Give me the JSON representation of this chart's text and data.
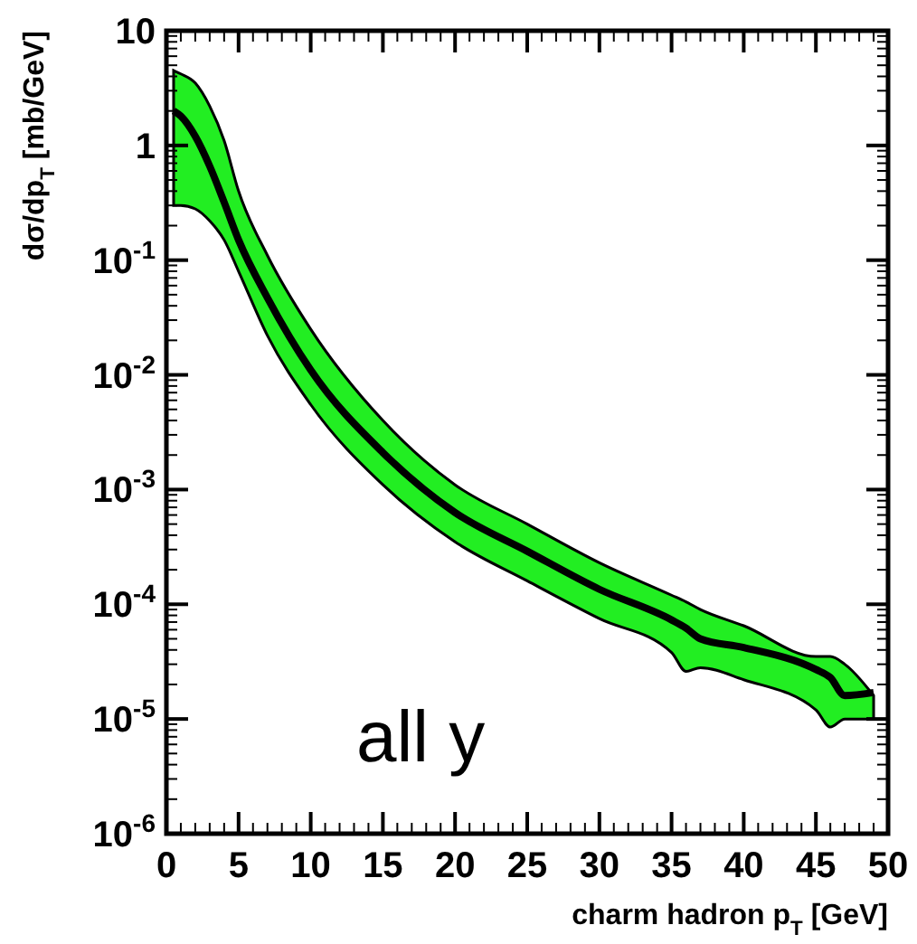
{
  "chart_data": {
    "type": "line",
    "xlabel": "charm hadron p$_{T}$ [GeV]",
    "ylabel": "dσ/dp$_{T}$ [mb/GeV]",
    "annotations": [
      "all y"
    ],
    "log": "y",
    "xlim": [
      0,
      50
    ],
    "ylim": [
      1e-06,
      10
    ],
    "xticks": [
      0,
      5,
      10,
      15,
      20,
      25,
      30,
      35,
      40,
      45,
      50
    ],
    "yticks": [
      {
        "value": 1e-06,
        "label": "10$^{-6}$"
      },
      {
        "value": 1e-05,
        "label": "10$^{-5}$"
      },
      {
        "value": 0.0001,
        "label": "10$^{-4}$"
      },
      {
        "value": 0.001,
        "label": "10$^{-3}$"
      },
      {
        "value": 0.01,
        "label": "10$^{-2}$"
      },
      {
        "value": 0.1,
        "label": "10$^{-1}$"
      },
      1,
      10
    ],
    "x": [
      0.5,
      1,
      2,
      3,
      4,
      5,
      7,
      10,
      15,
      20,
      25,
      30,
      35,
      36,
      37,
      40,
      45,
      46,
      47,
      49
    ],
    "grid": false,
    "marker": "none",
    "line_style": "solid",
    "series": [
      {
        "color": "#000000",
        "values": [
          2.0,
          1.8,
          1.2,
          0.66,
          0.32,
          0.15,
          0.047,
          0.011,
          0.0021,
          0.00063,
          0.00029,
          0.000135,
          7.3e-05,
          6.2e-05,
          5e-05,
          4.2e-05,
          2.7e-05,
          2.3e-05,
          1.6e-05,
          1.7e-05
        ],
        "upper": [
          4.5,
          4.2,
          3.5,
          2.2,
          1.1,
          0.4,
          0.11,
          0.025,
          0.004,
          0.0011,
          0.0005,
          0.00023,
          0.00012,
          0.000105,
          9e-05,
          6.5e-05,
          3.5e-05,
          3.5e-05,
          3e-05,
          1.6e-05
        ],
        "lower": [
          0.3,
          0.3,
          0.28,
          0.22,
          0.15,
          0.08,
          0.022,
          0.0055,
          0.0011,
          0.00035,
          0.00016,
          7.5e-05,
          3.8e-05,
          2.6e-05,
          2.8e-05,
          2.2e-05,
          1.2e-05,
          8.5e-06,
          1e-05,
          1e-05
        ]
      }
    ]
  }
}
